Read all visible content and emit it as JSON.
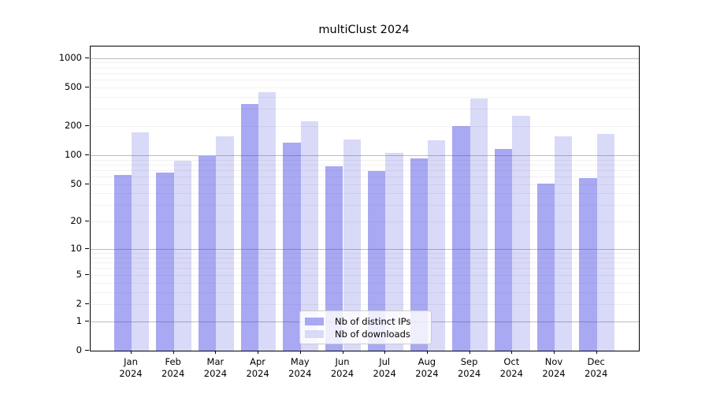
{
  "title": "multiClust 2024",
  "legend": {
    "items": [
      {
        "label": "Nb of distinct IPs",
        "color": "#a8a8f3"
      },
      {
        "label": "Nb of downloads",
        "color": "#d9d9f8"
      }
    ]
  },
  "colors": {
    "bar_distinct_ips": "#a8a8f3",
    "bar_downloads": "#d9d9f8",
    "spine": "#000000",
    "grid_major": "#c3c3c3",
    "grid_minor": "#ebebeb",
    "legend_border": "#cccccc"
  },
  "chart_data": {
    "type": "bar",
    "title": "multiClust 2024",
    "categories": [
      "Jan",
      "Feb",
      "Mar",
      "Apr",
      "May",
      "Jun",
      "Jul",
      "Aug",
      "Sep",
      "Oct",
      "Nov",
      "Dec"
    ],
    "year": "2024",
    "series": [
      {
        "name": "Nb of distinct IPs",
        "color": "#a8a8f3",
        "values": [
          62,
          66,
          99,
          337,
          135,
          77,
          69,
          93,
          200,
          117,
          51,
          58
        ]
      },
      {
        "name": "Nb of downloads",
        "color": "#d9d9f8",
        "values": [
          172,
          88,
          157,
          446,
          224,
          146,
          105,
          142,
          382,
          253,
          157,
          165
        ]
      }
    ],
    "xlabel": "",
    "ylabel": "",
    "yscale": "log1p",
    "ylim": [
      0,
      1300
    ],
    "yticks": [
      1000,
      500,
      200,
      100,
      50,
      20,
      10,
      5,
      2,
      1,
      0
    ],
    "grid": true,
    "legend_position": "lower-center"
  }
}
